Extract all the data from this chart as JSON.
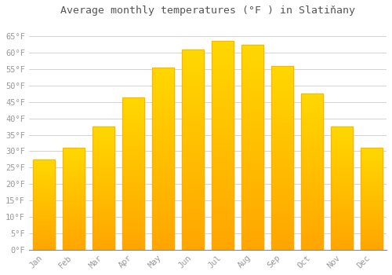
{
  "title": "Average monthly temperatures (°F ) in Slatiňany",
  "months": [
    "Jan",
    "Feb",
    "Mar",
    "Apr",
    "May",
    "Jun",
    "Jul",
    "Aug",
    "Sep",
    "Oct",
    "Nov",
    "Dec"
  ],
  "values": [
    27.5,
    31.0,
    37.5,
    46.5,
    55.5,
    61.0,
    63.5,
    62.5,
    56.0,
    47.5,
    37.5,
    31.0
  ],
  "bar_color_top": "#FFD700",
  "bar_color_bottom": "#FFA500",
  "background_color": "#FFFFFF",
  "grid_color": "#CCCCCC",
  "ylim": [
    0,
    70
  ],
  "yticks": [
    0,
    5,
    10,
    15,
    20,
    25,
    30,
    35,
    40,
    45,
    50,
    55,
    60,
    65
  ],
  "tick_label_color": "#999999",
  "title_color": "#555555",
  "title_fontsize": 9.5,
  "tick_fontsize": 7.5,
  "font_family": "monospace"
}
